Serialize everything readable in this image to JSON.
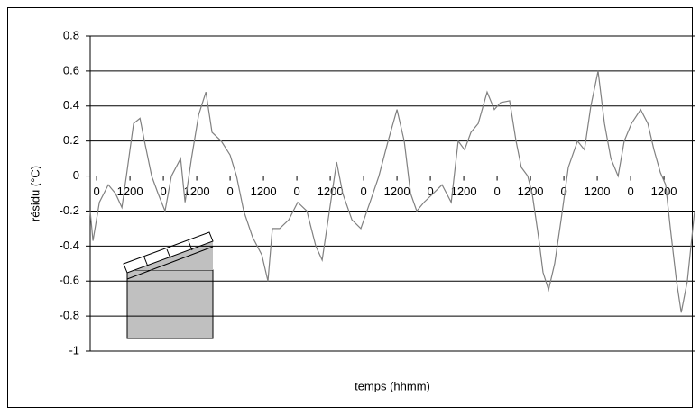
{
  "chart_data": {
    "type": "line",
    "y_label": "résidu (°C)",
    "x_label": "temps (hhmm)",
    "xlim": [
      -2.3,
      215
    ],
    "ylim": [
      -1,
      0.8
    ],
    "yticks": [
      0.8,
      0.6,
      0.4,
      0.2,
      0,
      -0.2,
      -0.4,
      -0.6,
      -0.8,
      -1
    ],
    "xticks": [
      0,
      {
        "value": 12,
        "label": "1200"
      },
      {
        "value": 24,
        "label": "0"
      },
      {
        "value": 36,
        "label": "1200"
      },
      {
        "value": 48,
        "label": "0"
      },
      {
        "value": 60,
        "label": "1200"
      },
      {
        "value": 72,
        "label": "0"
      },
      {
        "value": 84,
        "label": "1200"
      },
      {
        "value": 96,
        "label": "0"
      },
      {
        "value": 108,
        "label": "1200"
      },
      {
        "value": 120,
        "label": "0"
      },
      {
        "value": 132,
        "label": "1200"
      },
      {
        "value": 144,
        "label": "0"
      },
      {
        "value": 156,
        "label": "1200"
      },
      {
        "value": 168,
        "label": "0"
      },
      {
        "value": 180,
        "label": "1200"
      },
      {
        "value": 192,
        "label": "0"
      },
      {
        "value": 204,
        "label": "1200"
      }
    ],
    "grid": true,
    "x": [
      -2.3,
      -1.3,
      1.0,
      4.2,
      6.8,
      9.1,
      10.7,
      13.3,
      15.6,
      17.2,
      19.8,
      22.1,
      24.6,
      26.9,
      30.2,
      31.8,
      34.1,
      36.7,
      39.3,
      41.5,
      44.8,
      48.0,
      50.3,
      52.9,
      56.1,
      59.4,
      61.6,
      63.2,
      65.8,
      69.1,
      72.3,
      75.6,
      78.8,
      81.1,
      83.7,
      86.3,
      88.5,
      91.8,
      95.0,
      98.3,
      101.5,
      104.8,
      108.0,
      110.6,
      112.9,
      115.1,
      117.7,
      121.0,
      124.2,
      127.5,
      130.0,
      132.3,
      134.6,
      137.2,
      140.4,
      143.0,
      145.3,
      148.5,
      150.8,
      152.7,
      155.0,
      156.6,
      158.9,
      160.5,
      162.5,
      164.7,
      167.0,
      169.6,
      172.9,
      175.4,
      177.7,
      180.3,
      182.6,
      184.9,
      187.5,
      189.7,
      192.3,
      195.6,
      198.2,
      200.4,
      202.7,
      204.6,
      206.3,
      208.5,
      210.2,
      212.4,
      215.0
    ],
    "series": [
      {
        "color": "#808080",
        "values": [
          -0.2,
          -0.37,
          -0.15,
          -0.05,
          -0.1,
          -0.18,
          0,
          0.3,
          0.33,
          0.2,
          0,
          -0.1,
          -0.2,
          0,
          0.1,
          -0.15,
          0.1,
          0.35,
          0.48,
          0.25,
          0.2,
          0.12,
          0,
          -0.2,
          -0.35,
          -0.45,
          -0.6,
          -0.3,
          -0.3,
          -0.25,
          -0.15,
          -0.2,
          -0.4,
          -0.48,
          -0.2,
          0.08,
          -0.1,
          -0.25,
          -0.3,
          -0.15,
          0,
          0.2,
          0.38,
          0.2,
          -0.1,
          -0.2,
          -0.15,
          -0.1,
          -0.05,
          -0.15,
          0.2,
          0.15,
          0.25,
          0.3,
          0.48,
          0.38,
          0.42,
          0.43,
          0.2,
          0.05,
          0,
          -0.1,
          -0.35,
          -0.55,
          -0.65,
          -0.5,
          -0.25,
          0.05,
          0.2,
          0.15,
          0.4,
          0.6,
          0.3,
          0.1,
          0,
          0.2,
          0.3,
          0.38,
          0.3,
          0.15,
          0.02,
          -0.05,
          -0.3,
          -0.6,
          -0.78,
          -0.6,
          -0.2
        ]
      }
    ]
  }
}
